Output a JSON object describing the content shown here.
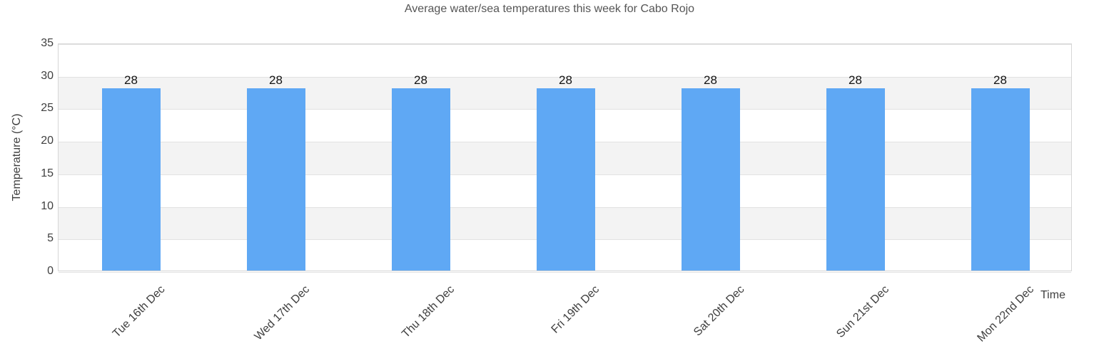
{
  "chart_data": {
    "type": "bar",
    "title": "Average water/sea temperatures this week for Cabo Rojo",
    "xlabel": "Time",
    "ylabel": "Temperature (°C)",
    "categories": [
      "Tue 16th Dec",
      "Wed 17th Dec",
      "Thu 18th Dec",
      "Fri 19th Dec",
      "Sat 20th Dec",
      "Sun 21st Dec",
      "Mon 22nd Dec"
    ],
    "values": [
      28,
      28,
      28,
      28,
      28,
      28,
      28
    ],
    "data_labels": [
      "28",
      "28",
      "28",
      "28",
      "28",
      "28",
      "28"
    ],
    "ylim": [
      0,
      35
    ],
    "yticks": [
      0,
      5,
      10,
      15,
      20,
      25,
      30,
      35
    ],
    "grid": true,
    "alternate_band_ranges": [
      [
        5,
        10
      ],
      [
        15,
        20
      ],
      [
        25,
        30
      ]
    ],
    "legend": "none",
    "colors": {
      "bar": "#5fa8f4",
      "band": "#f3f3f3",
      "gridline": "#e2e2e2",
      "plot_border": "#d6d6d6",
      "title_text": "#555555",
      "axis_text": "#3f3f3f",
      "value_text": "#141414"
    }
  }
}
